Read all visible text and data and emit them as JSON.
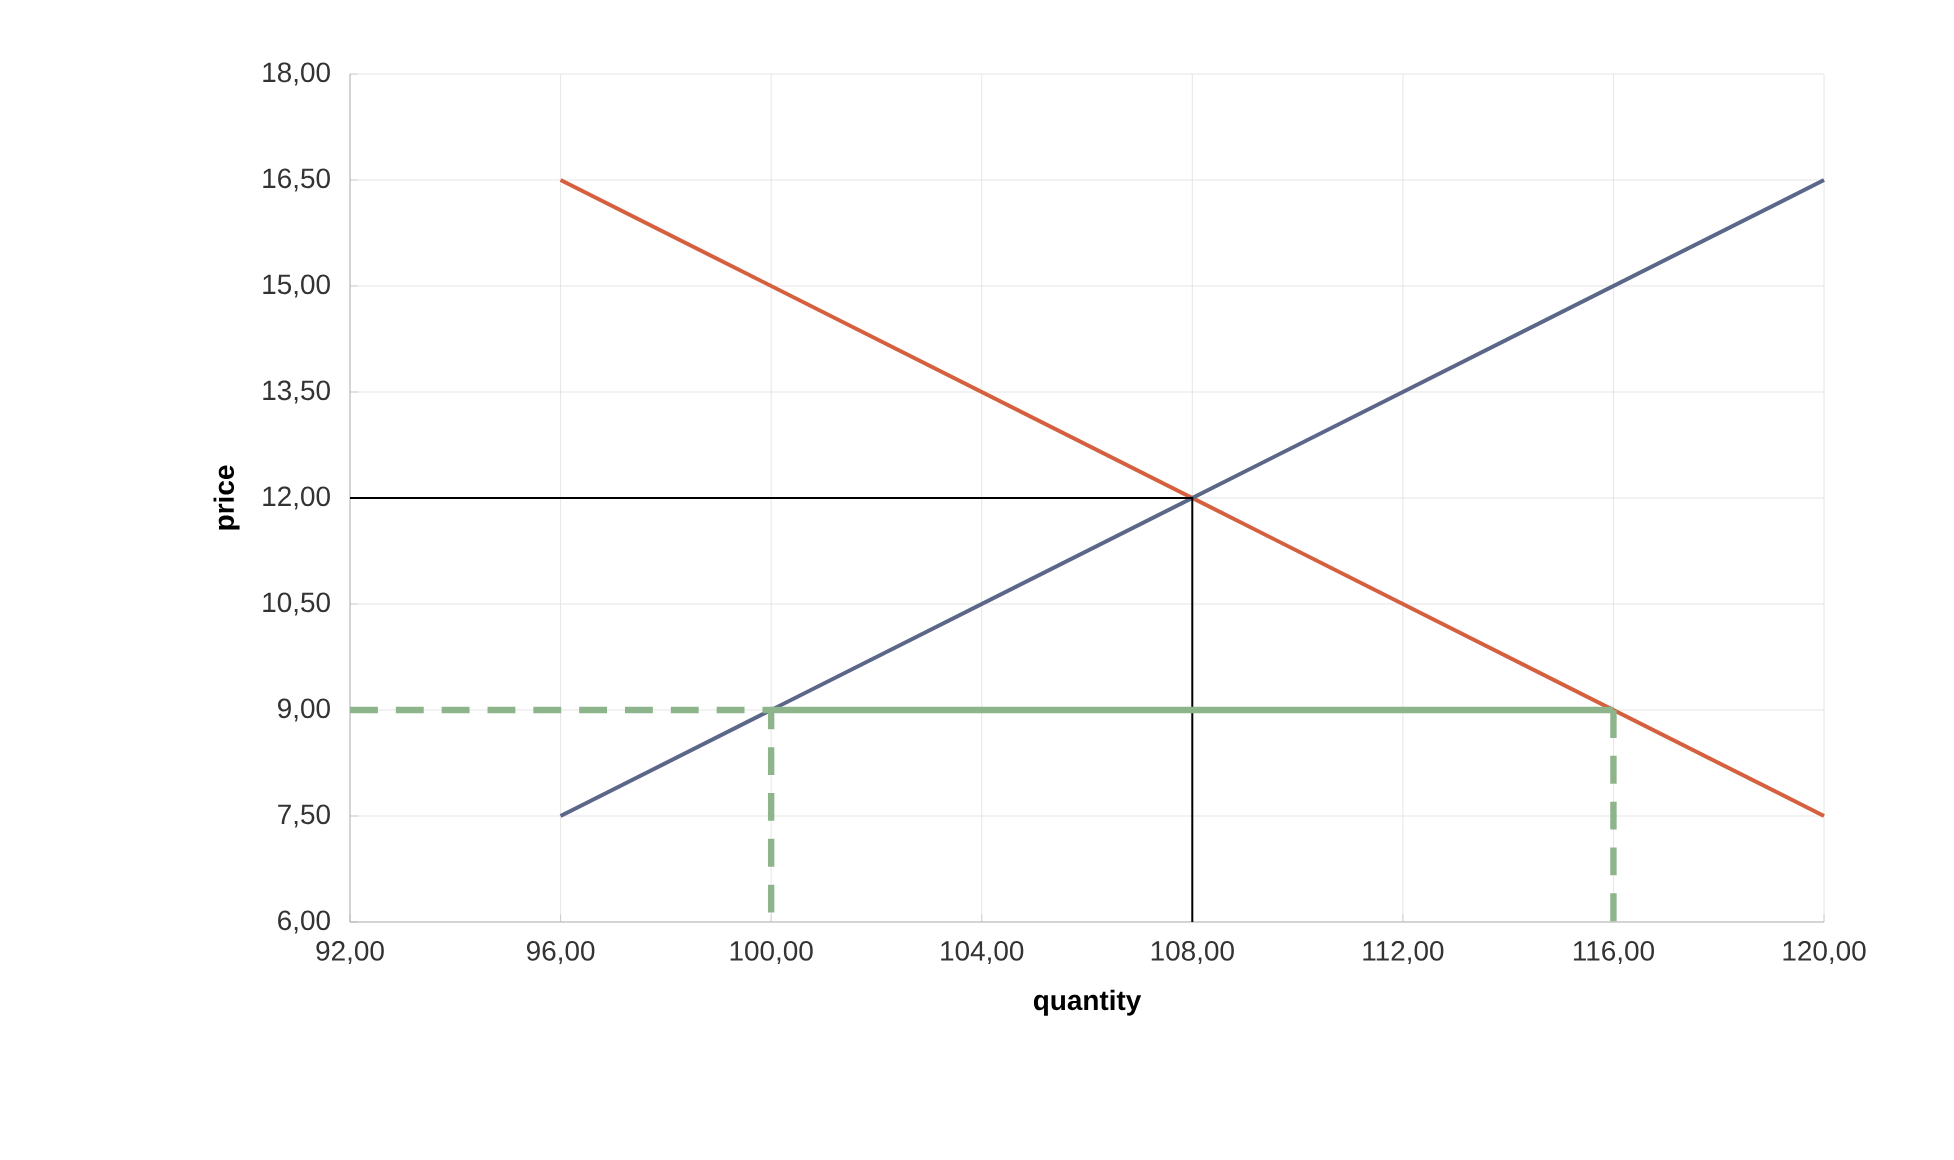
{
  "chart_data": {
    "type": "line",
    "xlabel": "quantity",
    "ylabel": "price",
    "xlim": [
      92,
      120
    ],
    "ylim": [
      6,
      18
    ],
    "xticks": [
      {
        "value": 92,
        "label": "92,00"
      },
      {
        "value": 96,
        "label": "96,00"
      },
      {
        "value": 100,
        "label": "100,00"
      },
      {
        "value": 104,
        "label": "104,00"
      },
      {
        "value": 108,
        "label": "108,00"
      },
      {
        "value": 112,
        "label": "112,00"
      },
      {
        "value": 116,
        "label": "116,00"
      },
      {
        "value": 120,
        "label": "120,00"
      }
    ],
    "yticks": [
      {
        "value": 6,
        "label": "6,00"
      },
      {
        "value": 7.5,
        "label": "7,50"
      },
      {
        "value": 9,
        "label": "9,00"
      },
      {
        "value": 10.5,
        "label": "10,50"
      },
      {
        "value": 12,
        "label": "12,00"
      },
      {
        "value": 13.5,
        "label": "13,50"
      },
      {
        "value": 15,
        "label": "15,00"
      },
      {
        "value": 16.5,
        "label": "16,50"
      },
      {
        "value": 18,
        "label": "18,00"
      }
    ],
    "grid": true,
    "marker": "none",
    "series": [
      {
        "color": "#d4603f",
        "x": [
          96,
          120
        ],
        "values": [
          16.5,
          7.5
        ],
        "line_style": "solid"
      },
      {
        "color": "#5b6788",
        "x": [
          96,
          120
        ],
        "values": [
          7.5,
          16.5
        ],
        "line_style": "solid"
      },
      {
        "color": "#000000",
        "x": [
          92,
          108,
          108
        ],
        "values": [
          12,
          12,
          6
        ],
        "line_style": "solid"
      },
      {
        "color": "#8db48a",
        "x": [
          92,
          100,
          100
        ],
        "values": [
          9,
          9,
          6
        ],
        "line_style": "dashed"
      },
      {
        "color": "#8db48a",
        "x": [
          116,
          116
        ],
        "values": [
          9,
          6
        ],
        "line_style": "dashed"
      },
      {
        "color": "#8db48a",
        "x": [
          100,
          116
        ],
        "values": [
          9,
          9
        ],
        "line_style": "solid"
      }
    ]
  }
}
